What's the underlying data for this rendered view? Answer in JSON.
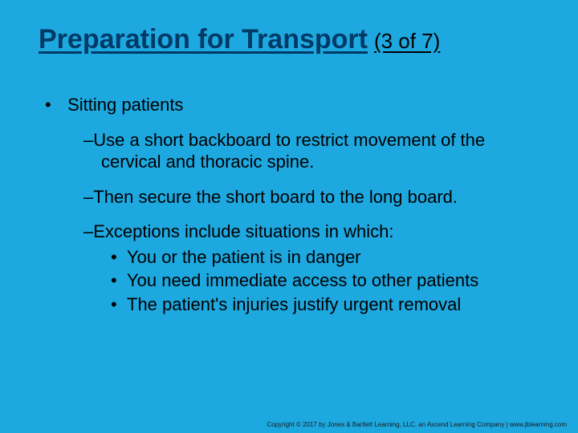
{
  "colors": {
    "background": "#1ea8e0",
    "title": "#003a66",
    "body": "#000000"
  },
  "typography": {
    "title_fontsize": 34,
    "counter_fontsize": 26,
    "body_fontsize": 22
  },
  "title": {
    "main": "Preparation for Transport",
    "counter": "(3 of 7)"
  },
  "content": {
    "level1": "Sitting patients",
    "level2": [
      {
        "text": "Use a short backboard to restrict movement of the cervical and thoracic spine."
      },
      {
        "text": "Then secure the short board to the long board."
      },
      {
        "text": "Exceptions include situations in which:",
        "sub": [
          "You or the patient is in danger",
          "You need immediate access to other patients",
          "The patient's injuries justify urgent removal"
        ]
      }
    ]
  },
  "footer": "Copyright © 2017 by Jones & Bartlett Learning, LLC, an Ascend Learning Company | www.jblearning.com"
}
